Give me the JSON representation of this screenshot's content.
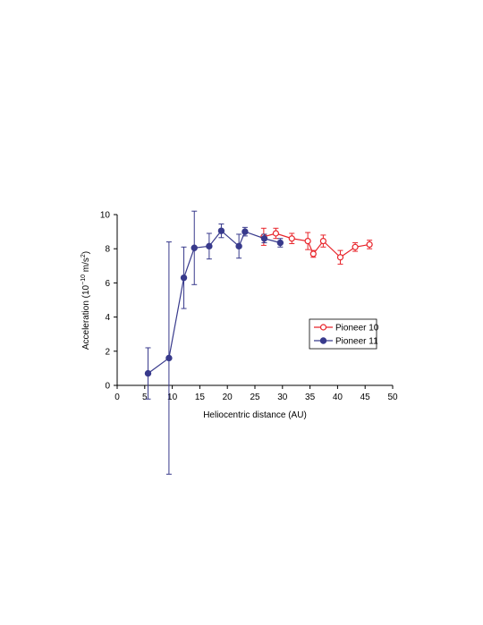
{
  "chart_data": {
    "type": "line",
    "xlabel": "Heliocentric distance (AU)",
    "ylabel": {
      "prefix": "Acceleration (10",
      "exp": "−10",
      "unit": " m/s",
      "unit_exp": "2",
      "suffix": ")"
    },
    "xlim": [
      0,
      50
    ],
    "ylim": [
      0,
      10
    ],
    "x_ticks": [
      "0",
      "5",
      "10",
      "15",
      "20",
      "25",
      "30",
      "35",
      "40",
      "45",
      "50"
    ],
    "y_ticks": [
      "0",
      "2",
      "4",
      "6",
      "8",
      "10"
    ],
    "grid": false,
    "legend_position": "right",
    "series": [
      {
        "name": "Pioneer 10",
        "color": "#e8242a",
        "marker": "open-circle",
        "points": [
          {
            "x": 26.6,
            "y": 8.7,
            "err": 0.5
          },
          {
            "x": 28.8,
            "y": 8.9,
            "err": 0.3
          },
          {
            "x": 31.7,
            "y": 8.6,
            "err": 0.3
          },
          {
            "x": 34.6,
            "y": 8.45,
            "err": 0.5
          },
          {
            "x": 35.6,
            "y": 7.7,
            "err": 0.2
          },
          {
            "x": 37.4,
            "y": 8.45,
            "err": 0.35
          },
          {
            "x": 40.5,
            "y": 7.5,
            "err": 0.4
          },
          {
            "x": 43.2,
            "y": 8.1,
            "err": 0.25
          },
          {
            "x": 45.8,
            "y": 8.25,
            "err": 0.25
          }
        ]
      },
      {
        "name": "Pioneer 11",
        "color": "#383a8c",
        "marker": "filled-circle",
        "points": [
          {
            "x": 5.6,
            "y": 0.7,
            "err": 1.5
          },
          {
            "x": 9.4,
            "y": 1.6,
            "err": 6.8
          },
          {
            "x": 12.1,
            "y": 6.3,
            "err": 1.8
          },
          {
            "x": 14.0,
            "y": 8.05,
            "err": 2.15
          },
          {
            "x": 16.7,
            "y": 8.15,
            "err": 0.75
          },
          {
            "x": 18.9,
            "y": 9.05,
            "err": 0.4
          },
          {
            "x": 22.1,
            "y": 8.15,
            "err": 0.7
          },
          {
            "x": 23.2,
            "y": 9.0,
            "err": 0.25
          },
          {
            "x": 26.7,
            "y": 8.6,
            "err": 0.25
          },
          {
            "x": 29.6,
            "y": 8.35,
            "err": 0.25
          }
        ]
      }
    ]
  }
}
